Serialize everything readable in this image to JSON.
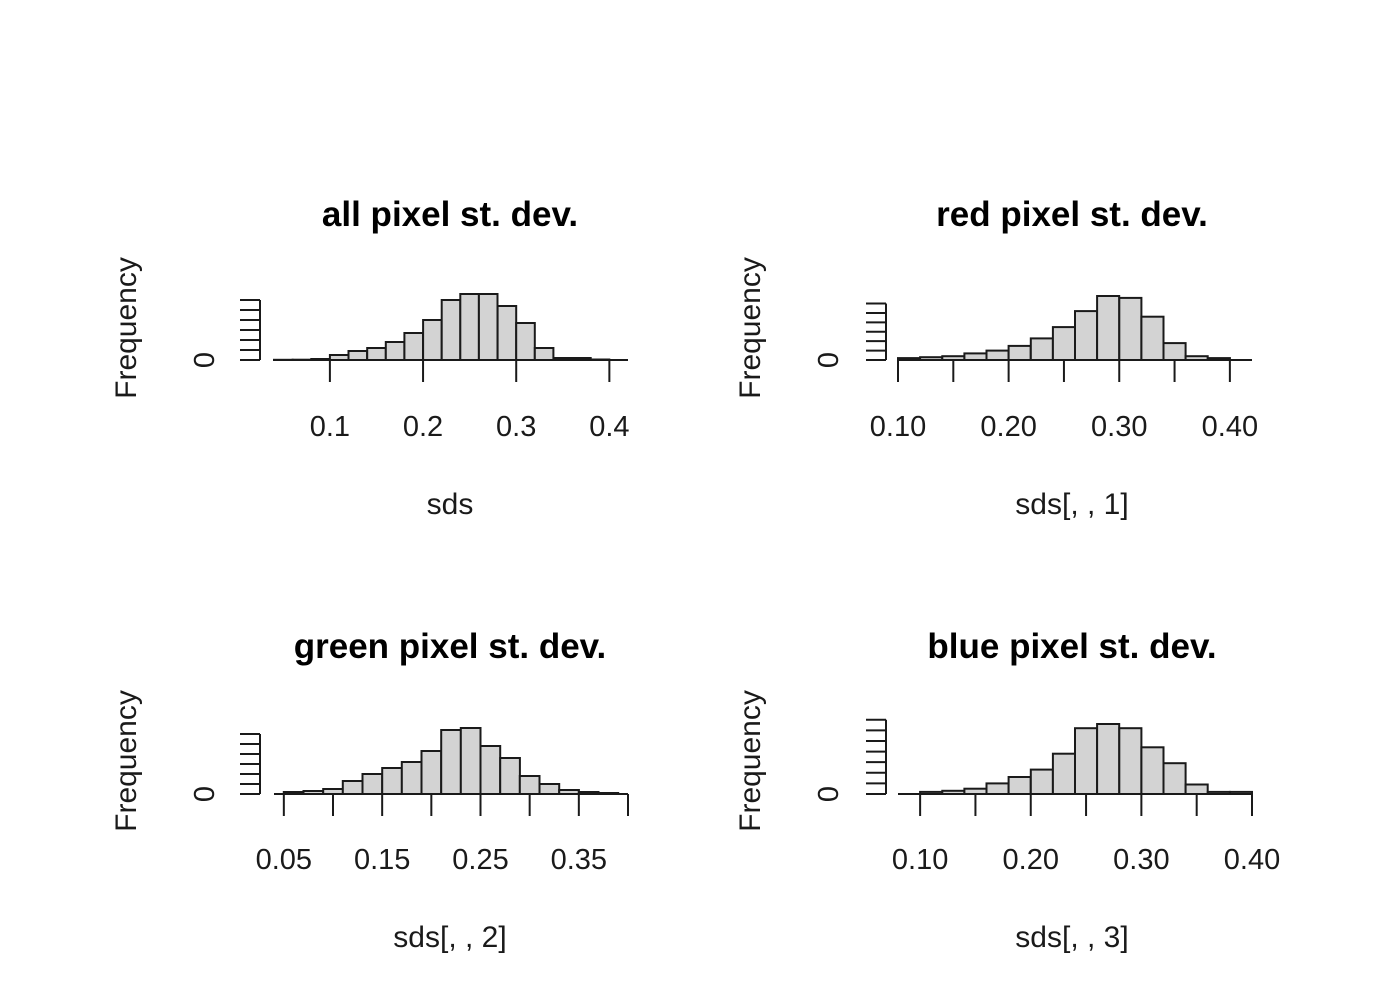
{
  "chart_data": [
    {
      "type": "bar",
      "title": "all pixel st. dev.",
      "xlabel": "sds",
      "ylabel": "Frequency",
      "x_ticks": [
        0.1,
        0.2,
        0.3,
        0.4
      ],
      "x_tick_labels": [
        "0.1",
        "0.2",
        "0.3",
        "0.4"
      ],
      "y_ticks": [
        0,
        1,
        2,
        3,
        4,
        5,
        6
      ],
      "y_tick_labels": [
        "0"
      ],
      "bin_edges": [
        0.04,
        0.06,
        0.08,
        0.1,
        0.12,
        0.14,
        0.16,
        0.18,
        0.2,
        0.22,
        0.24,
        0.26,
        0.28,
        0.3,
        0.32,
        0.34,
        0.36,
        0.38,
        0.4
      ],
      "values": [
        0.02,
        0.03,
        0.1,
        0.5,
        0.9,
        1.2,
        1.8,
        2.7,
        4.0,
        6.0,
        6.6,
        6.6,
        5.4,
        3.7,
        1.2,
        0.2,
        0.2,
        0.05
      ],
      "xlim": [
        0.04,
        0.42
      ],
      "ylim": [
        0,
        6.6
      ]
    },
    {
      "type": "bar",
      "title": "red pixel st. dev.",
      "xlabel": "sds[, , 1]",
      "ylabel": "Frequency",
      "x_ticks": [
        0.1,
        0.15,
        0.2,
        0.25,
        0.3,
        0.35,
        0.4
      ],
      "x_tick_labels": [
        "0.10",
        "0.20",
        "0.30",
        "0.40"
      ],
      "y_ticks": [
        0,
        1,
        2,
        3,
        4,
        5,
        6
      ],
      "y_tick_labels": [
        "0"
      ],
      "bin_edges": [
        0.1,
        0.12,
        0.14,
        0.16,
        0.18,
        0.2,
        0.22,
        0.24,
        0.26,
        0.28,
        0.3,
        0.32,
        0.34,
        0.36,
        0.38,
        0.4
      ],
      "values": [
        0.2,
        0.3,
        0.4,
        0.7,
        1.0,
        1.5,
        2.3,
        3.5,
        5.2,
        6.8,
        6.6,
        4.6,
        1.8,
        0.4,
        0.2
      ],
      "xlim": [
        0.1,
        0.42
      ],
      "ylim": [
        0,
        6.8
      ]
    },
    {
      "type": "bar",
      "title": "green pixel st. dev.",
      "xlabel": "sds[, , 2]",
      "ylabel": "Frequency",
      "x_ticks": [
        0.05,
        0.1,
        0.15,
        0.2,
        0.25,
        0.3,
        0.35,
        0.4
      ],
      "x_tick_labels": [
        "0.05",
        "0.15",
        "0.25",
        "0.35"
      ],
      "y_ticks": [
        0,
        1,
        2,
        3,
        4,
        5,
        6
      ],
      "y_tick_labels": [
        "0"
      ],
      "bin_edges": [
        0.05,
        0.07,
        0.09,
        0.11,
        0.13,
        0.15,
        0.17,
        0.19,
        0.21,
        0.23,
        0.25,
        0.27,
        0.29,
        0.31,
        0.33,
        0.35,
        0.37,
        0.39
      ],
      "values": [
        0.2,
        0.3,
        0.5,
        1.3,
        2.0,
        2.6,
        3.2,
        4.3,
        6.4,
        6.6,
        4.8,
        3.6,
        1.8,
        1.0,
        0.4,
        0.2,
        0.1
      ],
      "xlim": [
        0.04,
        0.4
      ],
      "ylim": [
        0,
        6.6
      ]
    },
    {
      "type": "bar",
      "title": "blue pixel st. dev.",
      "xlabel": "sds[, , 3]",
      "ylabel": "Frequency",
      "x_ticks": [
        0.1,
        0.15,
        0.2,
        0.25,
        0.3,
        0.35,
        0.4
      ],
      "x_tick_labels": [
        "0.10",
        "0.20",
        "0.30",
        "0.40"
      ],
      "y_ticks": [
        0,
        1,
        2,
        3,
        4,
        5,
        6,
        7
      ],
      "y_tick_labels": [
        "0"
      ],
      "bin_edges": [
        0.1,
        0.12,
        0.14,
        0.16,
        0.18,
        0.2,
        0.22,
        0.24,
        0.26,
        0.28,
        0.3,
        0.32,
        0.34,
        0.36,
        0.38,
        0.4
      ],
      "values": [
        0.2,
        0.3,
        0.5,
        1.0,
        1.6,
        2.3,
        3.8,
        6.2,
        6.6,
        6.2,
        4.4,
        2.9,
        0.9,
        0.2,
        0.2
      ],
      "xlim": [
        0.08,
        0.4
      ],
      "ylim": [
        0,
        6.6
      ]
    }
  ]
}
